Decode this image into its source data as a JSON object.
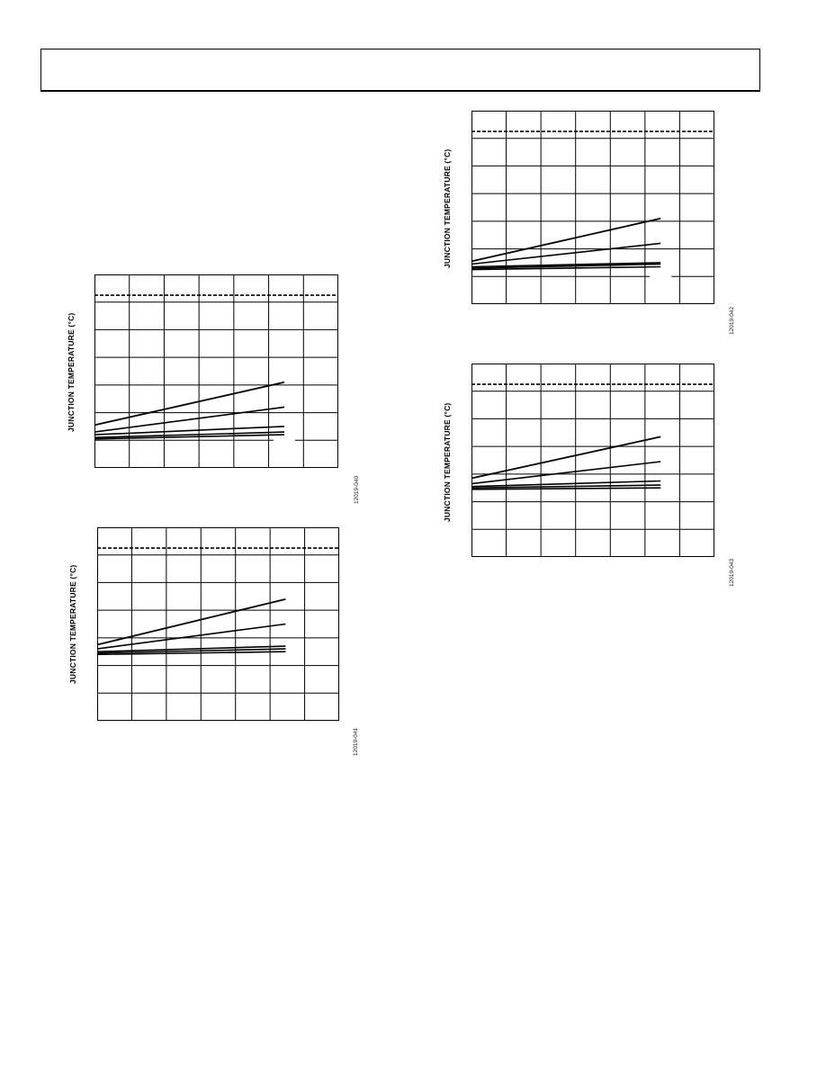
{
  "page": {
    "header_text": ""
  },
  "chart_data": [
    {
      "type": "line",
      "ylabel": "JUNCTION TEMPERATURE (°C)",
      "figure_id": "12019-040",
      "grid": true,
      "ylim": [
        0,
        7
      ],
      "xlim": [
        0,
        7
      ],
      "limit_line": {
        "y": 6.25,
        "style": "dashed"
      },
      "series": [
        {
          "x": [
            0,
            5.45
          ],
          "values": [
            1.55,
            3.1
          ]
        },
        {
          "x": [
            0,
            5.45
          ],
          "values": [
            1.3,
            2.2
          ]
        },
        {
          "x": [
            0,
            5.45
          ],
          "values": [
            1.2,
            1.5
          ]
        },
        {
          "x": [
            0,
            5.45
          ],
          "values": [
            1.1,
            1.3
          ]
        },
        {
          "x": [
            0,
            5.45
          ],
          "values": [
            1.05,
            1.2
          ]
        }
      ]
    },
    {
      "type": "line",
      "ylabel": "JUNCTION TEMPERATURE (°C)",
      "figure_id": "12019-041",
      "grid": true,
      "ylim": [
        0,
        7
      ],
      "xlim": [
        0,
        7
      ],
      "limit_line": {
        "y": 6.25,
        "style": "dashed"
      },
      "series": [
        {
          "x": [
            0,
            5.45
          ],
          "values": [
            2.75,
            4.4
          ]
        },
        {
          "x": [
            0,
            5.45
          ],
          "values": [
            2.6,
            3.5
          ]
        },
        {
          "x": [
            0,
            5.45
          ],
          "values": [
            2.5,
            2.7
          ]
        },
        {
          "x": [
            0,
            5.45
          ],
          "values": [
            2.45,
            2.6
          ]
        },
        {
          "x": [
            0,
            5.45
          ],
          "values": [
            2.4,
            2.5
          ]
        }
      ]
    },
    {
      "type": "line",
      "ylabel": "JUNCTION TEMPERATURE (°C)",
      "figure_id": "12019-042",
      "grid": true,
      "ylim": [
        0,
        7
      ],
      "xlim": [
        0,
        7
      ],
      "limit_line": {
        "y": 6.25,
        "style": "dashed"
      },
      "series": [
        {
          "x": [
            0,
            5.45
          ],
          "values": [
            1.55,
            3.1
          ]
        },
        {
          "x": [
            0,
            5.45
          ],
          "values": [
            1.45,
            2.2
          ]
        },
        {
          "x": [
            0,
            5.45
          ],
          "values": [
            1.35,
            1.5
          ]
        },
        {
          "x": [
            0,
            5.45
          ],
          "values": [
            1.3,
            1.45
          ]
        },
        {
          "x": [
            0,
            5.45
          ],
          "values": [
            1.25,
            1.35
          ]
        }
      ]
    },
    {
      "type": "line",
      "ylabel": "JUNCTION TEMPERATURE (°C)",
      "figure_id": "12019-043",
      "grid": true,
      "ylim": [
        0,
        7
      ],
      "xlim": [
        0,
        7
      ],
      "limit_line": {
        "y": 6.25,
        "style": "dashed"
      },
      "series": [
        {
          "x": [
            0,
            5.45
          ],
          "values": [
            2.85,
            4.35
          ]
        },
        {
          "x": [
            0,
            5.45
          ],
          "values": [
            2.65,
            3.45
          ]
        },
        {
          "x": [
            0,
            5.45
          ],
          "values": [
            2.55,
            2.75
          ]
        },
        {
          "x": [
            0,
            5.45
          ],
          "values": [
            2.5,
            2.6
          ]
        },
        {
          "x": [
            0,
            5.45
          ],
          "values": [
            2.45,
            2.5
          ]
        }
      ]
    }
  ]
}
